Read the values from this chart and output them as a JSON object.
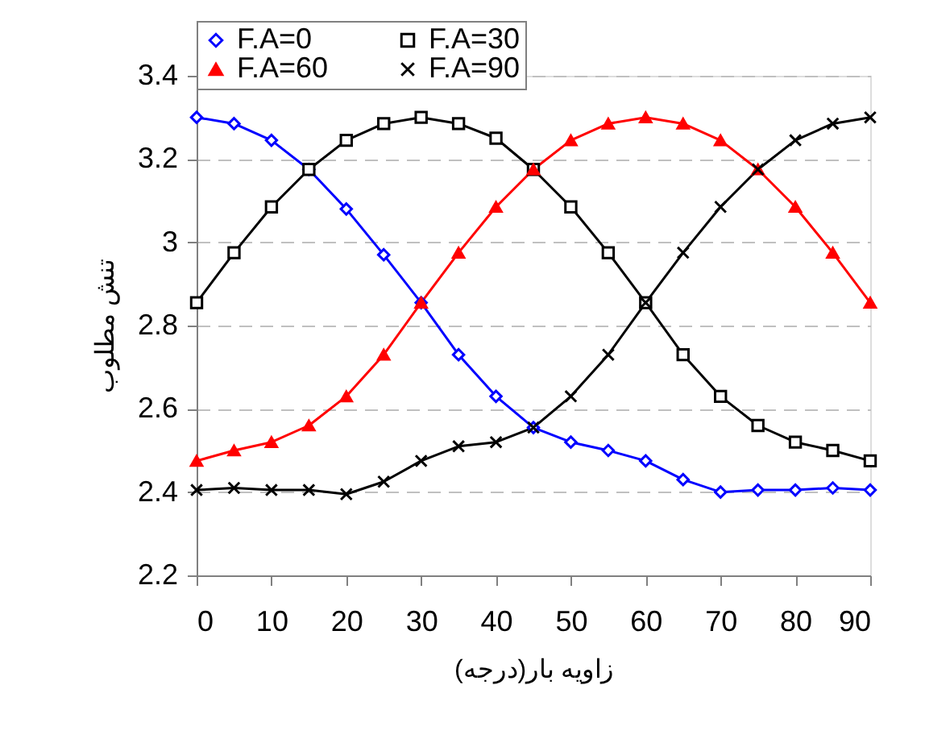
{
  "chart_data": {
    "type": "line",
    "xlabel": "زاویه بار(درجه)",
    "ylabel": "تنش مطلوب",
    "x": [
      0,
      5,
      10,
      15,
      20,
      25,
      30,
      35,
      40,
      45,
      50,
      55,
      60,
      65,
      70,
      75,
      80,
      85,
      90
    ],
    "series": [
      {
        "name": "F.A=0",
        "color": "#0000ff",
        "marker": "diamond",
        "values": [
          3.3,
          3.285,
          3.245,
          3.175,
          3.08,
          2.97,
          2.855,
          2.73,
          2.63,
          2.555,
          2.52,
          2.5,
          2.475,
          2.43,
          2.4,
          2.405,
          2.405,
          2.41,
          2.405
        ]
      },
      {
        "name": "F.A=30",
        "color": "#000000",
        "marker": "square",
        "values": [
          2.855,
          2.975,
          3.085,
          3.175,
          3.245,
          3.285,
          3.3,
          3.285,
          3.25,
          3.175,
          3.085,
          2.975,
          2.855,
          2.73,
          2.63,
          2.56,
          2.52,
          2.5,
          2.475
        ]
      },
      {
        "name": "F.A=60",
        "color": "#ff0000",
        "marker": "triangle",
        "values": [
          2.475,
          2.5,
          2.52,
          2.56,
          2.63,
          2.73,
          2.855,
          2.975,
          3.085,
          3.175,
          3.245,
          3.285,
          3.3,
          3.285,
          3.245,
          3.175,
          3.085,
          2.975,
          2.855
        ]
      },
      {
        "name": "F.A=90",
        "color": "#000000",
        "marker": "cross",
        "values": [
          2.405,
          2.41,
          2.405,
          2.405,
          2.395,
          2.425,
          2.475,
          2.51,
          2.52,
          2.555,
          2.63,
          2.73,
          2.855,
          2.975,
          3.085,
          3.175,
          3.245,
          3.285,
          3.3
        ]
      }
    ],
    "xlim": [
      0,
      90
    ],
    "xticks": [
      0,
      10,
      20,
      30,
      40,
      50,
      60,
      70,
      80,
      90
    ],
    "ylim": [
      2.2,
      3.4
    ],
    "yticks": [
      2.2,
      2.4,
      2.6,
      2.8,
      3,
      3.2,
      3.4
    ],
    "grid": "y",
    "legend": "top",
    "line_style": "solid"
  }
}
